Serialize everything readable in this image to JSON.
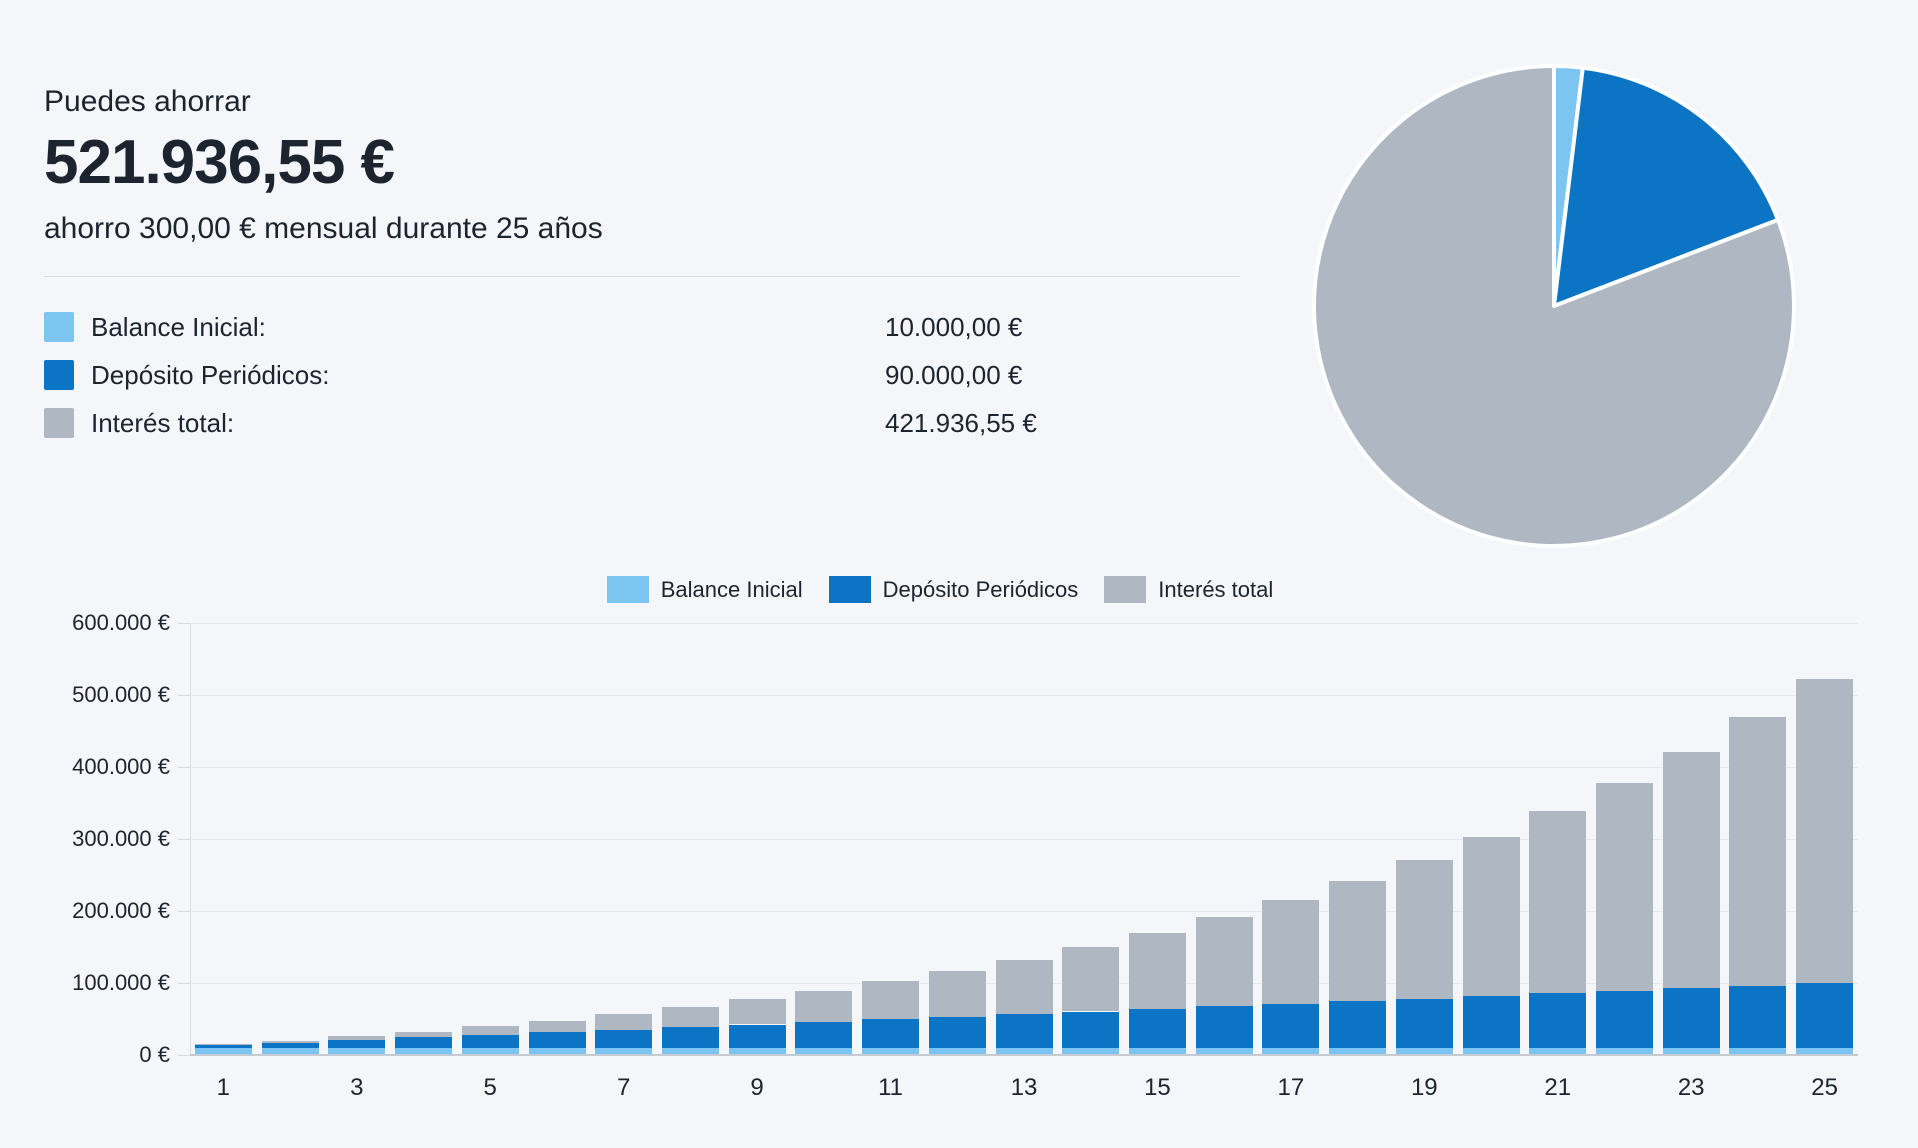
{
  "page": {
    "background": "#F4F6F9"
  },
  "colors": {
    "balance_inicial": "#7CC5F1",
    "deposito_periodicos": "#0B74C5",
    "interes_total": "#AFB8C2",
    "text": "#1C2430",
    "divider": "#D9DDE2",
    "gridline": "#E5E8EC",
    "axis_line": "#C6CBD1"
  },
  "summary": {
    "title": "Puedes ahorrar",
    "amount": "521.936,55 €",
    "subtitle": "ahorro 300,00 € mensual durante 25 años",
    "rows": [
      {
        "label": "Balance Inicial:",
        "value": "10.000,00 €",
        "color": "#7CC5F1"
      },
      {
        "label": "Depósito Periódicos:",
        "value": "90.000,00 €",
        "color": "#0B74C5"
      },
      {
        "label": "Interés total:",
        "value": "421.936,55 €",
        "color": "#AFB8C2"
      }
    ]
  },
  "chart_data": [
    {
      "type": "pie",
      "labels": [
        "Balance Inicial",
        "Depósito Periódicos",
        "Interés total"
      ],
      "values": [
        10000,
        90000,
        421936.55
      ],
      "colors": [
        "#7CC5F1",
        "#0B74C5",
        "#AFB8C2"
      ],
      "start_angle_deg": 0,
      "direction": "clockwise",
      "separator_color": "#FFFFFF"
    },
    {
      "type": "bar",
      "stacked": true,
      "title": "",
      "xlabel": "",
      "ylabel": "",
      "categories": [
        1,
        2,
        3,
        4,
        5,
        6,
        7,
        8,
        9,
        10,
        11,
        12,
        13,
        14,
        15,
        16,
        17,
        18,
        19,
        20,
        21,
        22,
        23,
        24,
        25
      ],
      "series": [
        {
          "name": "Balance Inicial",
          "color": "#7CC5F1",
          "values": [
            10000,
            10000,
            10000,
            10000,
            10000,
            10000,
            10000,
            10000,
            10000,
            10000,
            10000,
            10000,
            10000,
            10000,
            10000,
            10000,
            10000,
            10000,
            10000,
            10000,
            10000,
            10000,
            10000,
            10000,
            10000
          ]
        },
        {
          "name": "Depósito Periódicos",
          "color": "#0B74C5",
          "values": [
            3600,
            7200,
            10800,
            14400,
            18000,
            21600,
            25200,
            28800,
            32400,
            36000,
            39600,
            43200,
            46800,
            50400,
            54000,
            57600,
            61200,
            64800,
            68400,
            72000,
            75600,
            79200,
            82800,
            86400,
            90000
          ]
        },
        {
          "name": "Interés total",
          "color": "#AFB8C2",
          "values": [
            1248,
            3004,
            5321,
            8257,
            11878,
            16255,
            21468,
            27603,
            34757,
            43036,
            52560,
            63459,
            75876,
            89969,
            105917,
            123910,
            144164,
            166917,
            192429,
            220990,
            252917,
            288565,
            328323,
            372620,
            421937
          ]
        }
      ],
      "totals": [
        14848,
        20204,
        26121,
        32657,
        39878,
        47855,
        56668,
        66403,
        77157,
        89036,
        102160,
        116659,
        132676,
        150369,
        169917,
        191510,
        215364,
        241717,
        270829,
        302990,
        338517,
        377765,
        421123,
        469020,
        521937
      ],
      "ylim": [
        0,
        600000
      ],
      "grid": true,
      "y_ticks": [
        {
          "value": 0,
          "label": "0 €"
        },
        {
          "value": 100000,
          "label": "100.000 €"
        },
        {
          "value": 200000,
          "label": "200.000 €"
        },
        {
          "value": 300000,
          "label": "300.000 €"
        },
        {
          "value": 400000,
          "label": "400.000 €"
        },
        {
          "value": 500000,
          "label": "500.000 €"
        },
        {
          "value": 600000,
          "label": "600.000 €"
        }
      ],
      "x_ticks": [
        {
          "year": 1,
          "label": "1"
        },
        {
          "year": 3,
          "label": "3"
        },
        {
          "year": 5,
          "label": "5"
        },
        {
          "year": 7,
          "label": "7"
        },
        {
          "year": 9,
          "label": "9"
        },
        {
          "year": 11,
          "label": "11"
        },
        {
          "year": 13,
          "label": "13"
        },
        {
          "year": 15,
          "label": "15"
        },
        {
          "year": 17,
          "label": "17"
        },
        {
          "year": 19,
          "label": "19"
        },
        {
          "year": 21,
          "label": "21"
        },
        {
          "year": 23,
          "label": "23"
        },
        {
          "year": 25,
          "label": "25"
        }
      ],
      "legend": {
        "position": "top",
        "items": [
          "Balance Inicial",
          "Depósito Periódicos",
          "Interés total"
        ]
      }
    }
  ]
}
